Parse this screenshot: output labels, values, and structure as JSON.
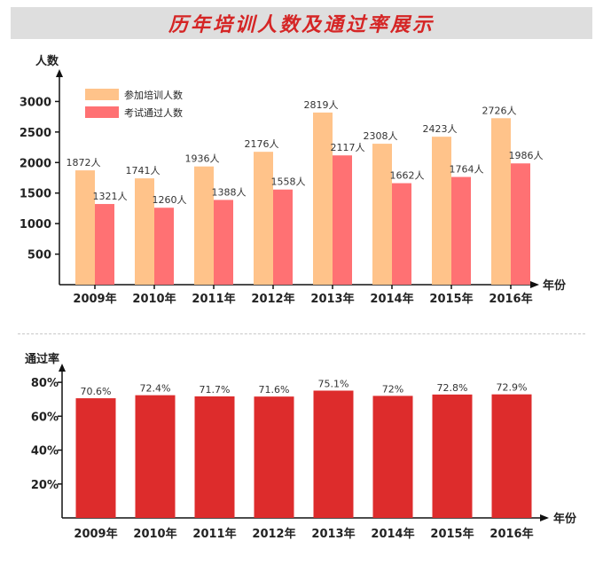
{
  "page_title": "历年培训人数及通过率展示",
  "chart_data": [
    {
      "type": "bar",
      "ylabel": "人数",
      "xlabel": "年份",
      "categories": [
        "2009年",
        "2010年",
        "2011年",
        "2012年",
        "2013年",
        "2014年",
        "2015年",
        "2016年"
      ],
      "yticks": [
        "500",
        "1000",
        "1500",
        "2000",
        "2500",
        "3000"
      ],
      "ylim": [
        0,
        3500
      ],
      "grid": false,
      "legend_position": "top-left",
      "series": [
        {
          "name": "参加培训人数",
          "color": "#ffc38a",
          "values": [
            1872,
            1741,
            1936,
            2176,
            2819,
            2308,
            2423,
            2726
          ],
          "labels": [
            "1872人",
            "1741人",
            "1936人",
            "2176人",
            "2819人",
            "2308人",
            "2423人",
            "2726人"
          ]
        },
        {
          "name": "考试通过人数",
          "color": "#ff7173",
          "values": [
            1321,
            1260,
            1388,
            1558,
            2117,
            1662,
            1764,
            1986
          ],
          "labels": [
            "1321人",
            "1260人",
            "1388人",
            "1558人",
            "2117人",
            "1662人",
            "1764人",
            "1986人"
          ]
        }
      ]
    },
    {
      "type": "bar",
      "ylabel": "通过率",
      "xlabel": "年份",
      "categories": [
        "2009年",
        "2010年",
        "2011年",
        "2012年",
        "2013年",
        "2014年",
        "2015年",
        "2016年"
      ],
      "yticks": [
        "20%",
        "40%",
        "60%",
        "80%"
      ],
      "ylim": [
        0,
        90
      ],
      "grid": false,
      "series": [
        {
          "color": "#dd2c2c",
          "values": [
            70.6,
            72.4,
            71.7,
            71.6,
            75.1,
            72,
            72.8,
            72.9
          ],
          "labels": [
            "70.6%",
            "72.4%",
            "71.7%",
            "71.6%",
            "75.1%",
            "72%",
            "72.8%",
            "72.9%"
          ]
        }
      ]
    }
  ]
}
